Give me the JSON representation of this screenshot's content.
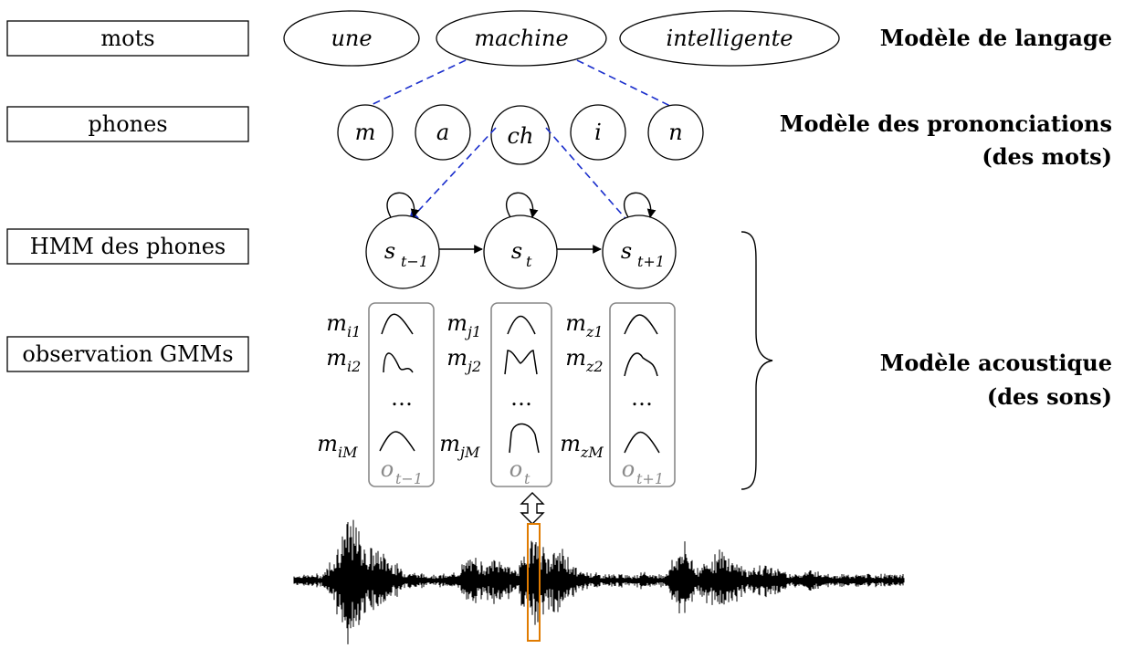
{
  "left_labels": {
    "words": "mots",
    "phones": "phones",
    "hmm": "HMM des phones",
    "gmm": "observation GMMs"
  },
  "words": [
    "une",
    "machine",
    "intelligente"
  ],
  "phones": [
    "m",
    "a",
    "ch",
    "i",
    "n"
  ],
  "right_labels": {
    "language_model": "Modèle de langage",
    "pronunciation_line1": "Modèle des prononciations",
    "pronunciation_line2": "(des mots)",
    "acoustic_line1": "Modèle acoustique",
    "acoustic_line2": "(des sons)"
  },
  "hmm_states": [
    {
      "base": "s",
      "sub": "t−1"
    },
    {
      "base": "s",
      "sub": "t"
    },
    {
      "base": "s",
      "sub": "t+1"
    }
  ],
  "gmm_columns": [
    {
      "mix": [
        {
          "base": "m",
          "sub": "i1"
        },
        {
          "base": "m",
          "sub": "i2"
        },
        {
          "base": "m",
          "sub": "iM"
        }
      ],
      "obs_base": "o",
      "obs_sub": "t−1"
    },
    {
      "mix": [
        {
          "base": "m",
          "sub": "j1"
        },
        {
          "base": "m",
          "sub": "j2"
        },
        {
          "base": "m",
          "sub": "jM"
        }
      ],
      "obs_base": "o",
      "obs_sub": "t"
    },
    {
      "mix": [
        {
          "base": "m",
          "sub": "z1"
        },
        {
          "base": "m",
          "sub": "z2"
        },
        {
          "base": "m",
          "sub": "zM"
        }
      ],
      "obs_base": "o",
      "obs_sub": "t+1"
    }
  ],
  "ellipsis": "…",
  "colors": {
    "dashed_link": "#1a2ecc",
    "box_border": "#888888",
    "observation_text": "#8a8a8a",
    "frame_highlight": "#e07b00",
    "waveform": "#000000"
  }
}
